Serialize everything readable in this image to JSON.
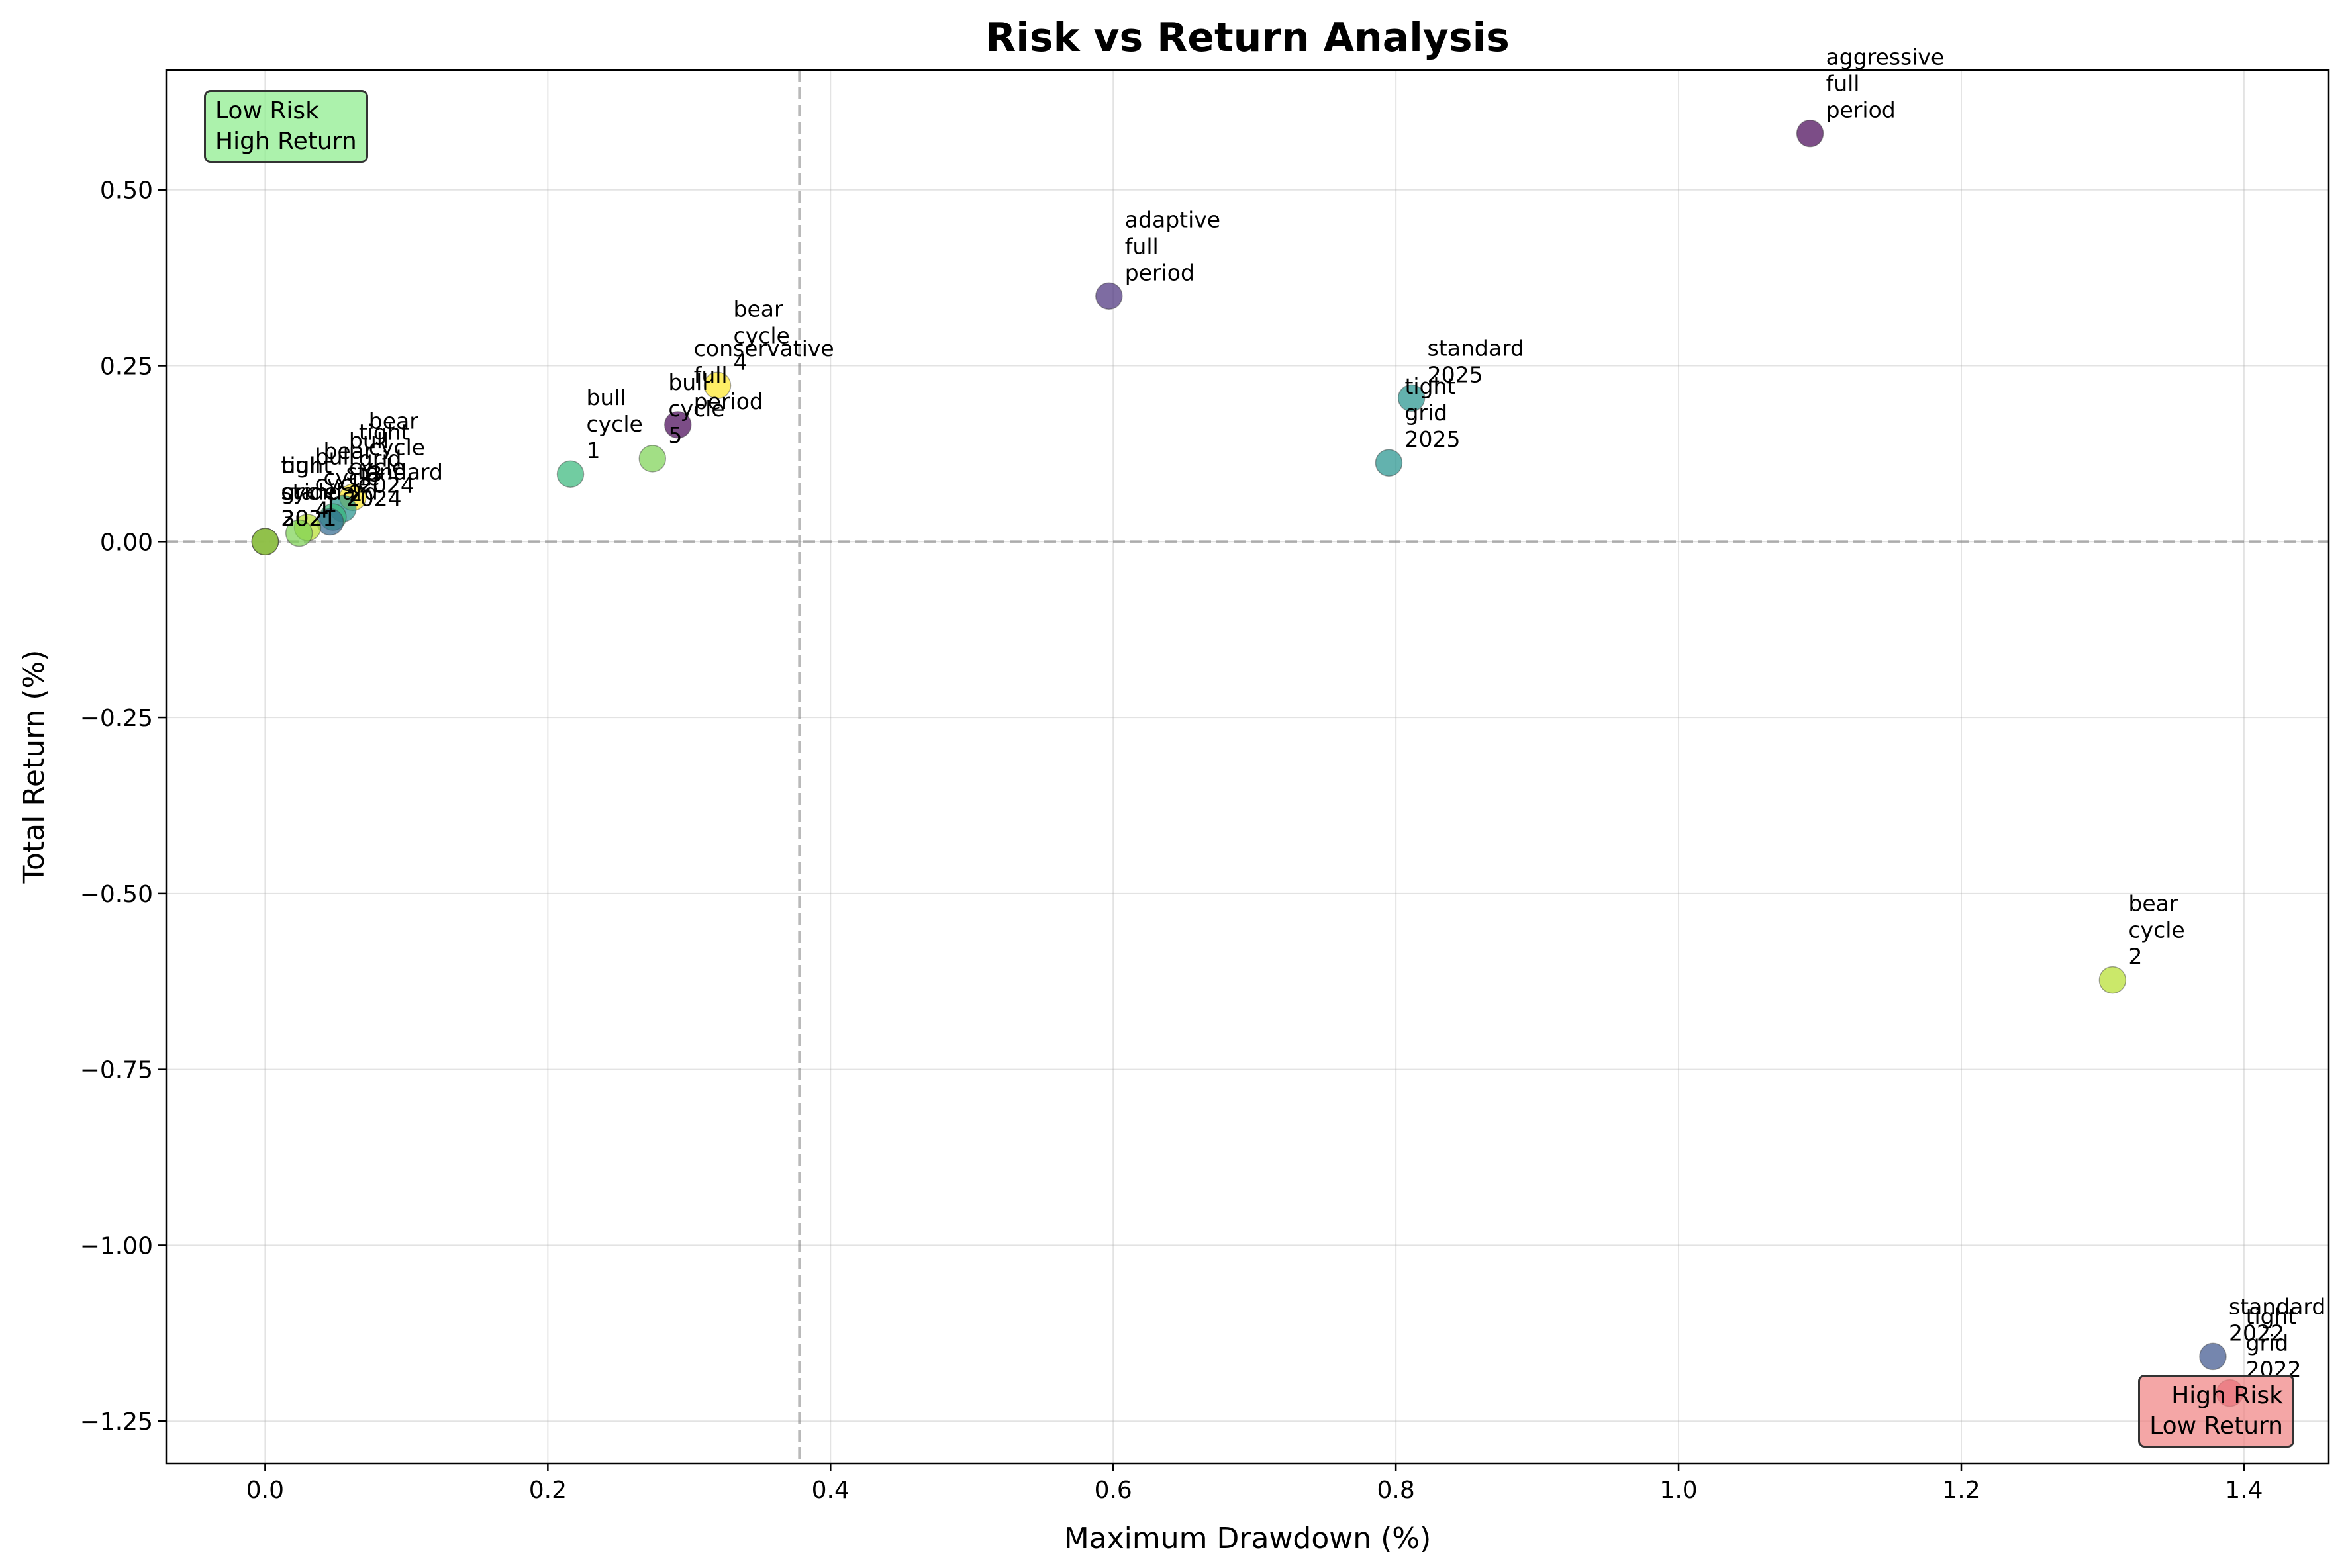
{
  "chart_data": {
    "type": "scatter",
    "title": "Risk vs Return Analysis",
    "xlabel": "Maximum Drawdown (%)",
    "ylabel": "Total Return (%)",
    "xlim": [
      -0.07,
      1.46
    ],
    "ylim": [
      -1.31,
      0.67
    ],
    "xticks": [
      0.0,
      0.2,
      0.4,
      0.6,
      0.8,
      1.0,
      1.2,
      1.4
    ],
    "xtick_labels": [
      "0.0",
      "0.2",
      "0.4",
      "0.6",
      "0.8",
      "1.0",
      "1.2",
      "1.4"
    ],
    "yticks": [
      0.5,
      0.25,
      0.0,
      -0.25,
      -0.5,
      -0.75,
      -1.0,
      -1.25
    ],
    "ytick_labels": [
      "0.50",
      "0.25",
      "0.00",
      "−0.25",
      "−0.50",
      "−0.75",
      "−1.00",
      "−1.25"
    ],
    "grid": true,
    "reference_lines": {
      "horizontal_y": 0.0,
      "vertical_x": 0.378
    },
    "points": [
      {
        "label": [
          "aggressive",
          "full",
          "period"
        ],
        "x": 1.093,
        "y": 0.58,
        "color": "#440154"
      },
      {
        "label": [
          "adaptive",
          "full",
          "period"
        ],
        "x": 0.597,
        "y": 0.349,
        "color": "#472d7b"
      },
      {
        "label": [
          "conservative",
          "full",
          "period"
        ],
        "x": 0.292,
        "y": 0.166,
        "color": "#440154"
      },
      {
        "label": [
          "bear",
          "cycle",
          "4"
        ],
        "x": 0.32,
        "y": 0.222,
        "color": "#fde725"
      },
      {
        "label": [
          "bull",
          "cycle",
          "5"
        ],
        "x": 0.274,
        "y": 0.118,
        "color": "#7ad151"
      },
      {
        "label": [
          "bull",
          "cycle",
          "1"
        ],
        "x": 0.216,
        "y": 0.096,
        "color": "#35b779"
      },
      {
        "label": [
          "standard",
          "2025"
        ],
        "x": 0.811,
        "y": 0.204,
        "color": "#21918c"
      },
      {
        "label": [
          "tight",
          "grid",
          "2025"
        ],
        "x": 0.795,
        "y": 0.112,
        "color": "#21918c"
      },
      {
        "label": [
          "bear",
          "cycle",
          "2"
        ],
        "x": 1.307,
        "y": -0.623,
        "color": "#b5de2b"
      },
      {
        "label": [
          "standard",
          "2022"
        ],
        "x": 1.378,
        "y": -1.158,
        "color": "#3b528b"
      },
      {
        "label": [
          "tight",
          "grid",
          "2022"
        ],
        "x": 1.39,
        "y": -1.21,
        "color": "#d94f6a"
      },
      {
        "label": [
          "bear",
          "cycle",
          "3"
        ],
        "x": 0.062,
        "y": 0.063,
        "color": "#fde725"
      },
      {
        "label": [
          "tight",
          "grid",
          "2024"
        ],
        "x": 0.055,
        "y": 0.047,
        "color": "#21918c"
      },
      {
        "label": [
          "bull",
          "cycle",
          "2"
        ],
        "x": 0.048,
        "y": 0.035,
        "color": "#35b779"
      },
      {
        "label": [
          "standard",
          "2024"
        ],
        "x": 0.046,
        "y": 0.028,
        "color": "#31688e"
      },
      {
        "label": [
          "bear",
          "cycle",
          "1"
        ],
        "x": 0.03,
        "y": 0.02,
        "color": "#b5de2b"
      },
      {
        "label": [
          "bull",
          "cycle",
          "4"
        ],
        "x": 0.024,
        "y": 0.012,
        "color": "#7ad151"
      },
      {
        "label": [
          "tight",
          "grid",
          "2021"
        ],
        "x": 0.0,
        "y": 0.0,
        "color": "#21918c"
      },
      {
        "label": [
          "standard",
          "2021"
        ],
        "x": 0.0,
        "y": 0.0,
        "color": "#31688e"
      },
      {
        "label": [
          "bull",
          "cycle",
          "3"
        ],
        "x": 0.0,
        "y": 0.0,
        "color": "#b5de2b"
      }
    ],
    "annotations": {
      "top_left": "Low Risk\nHigh Return",
      "bottom_right": "High Risk\nLow Return"
    }
  }
}
